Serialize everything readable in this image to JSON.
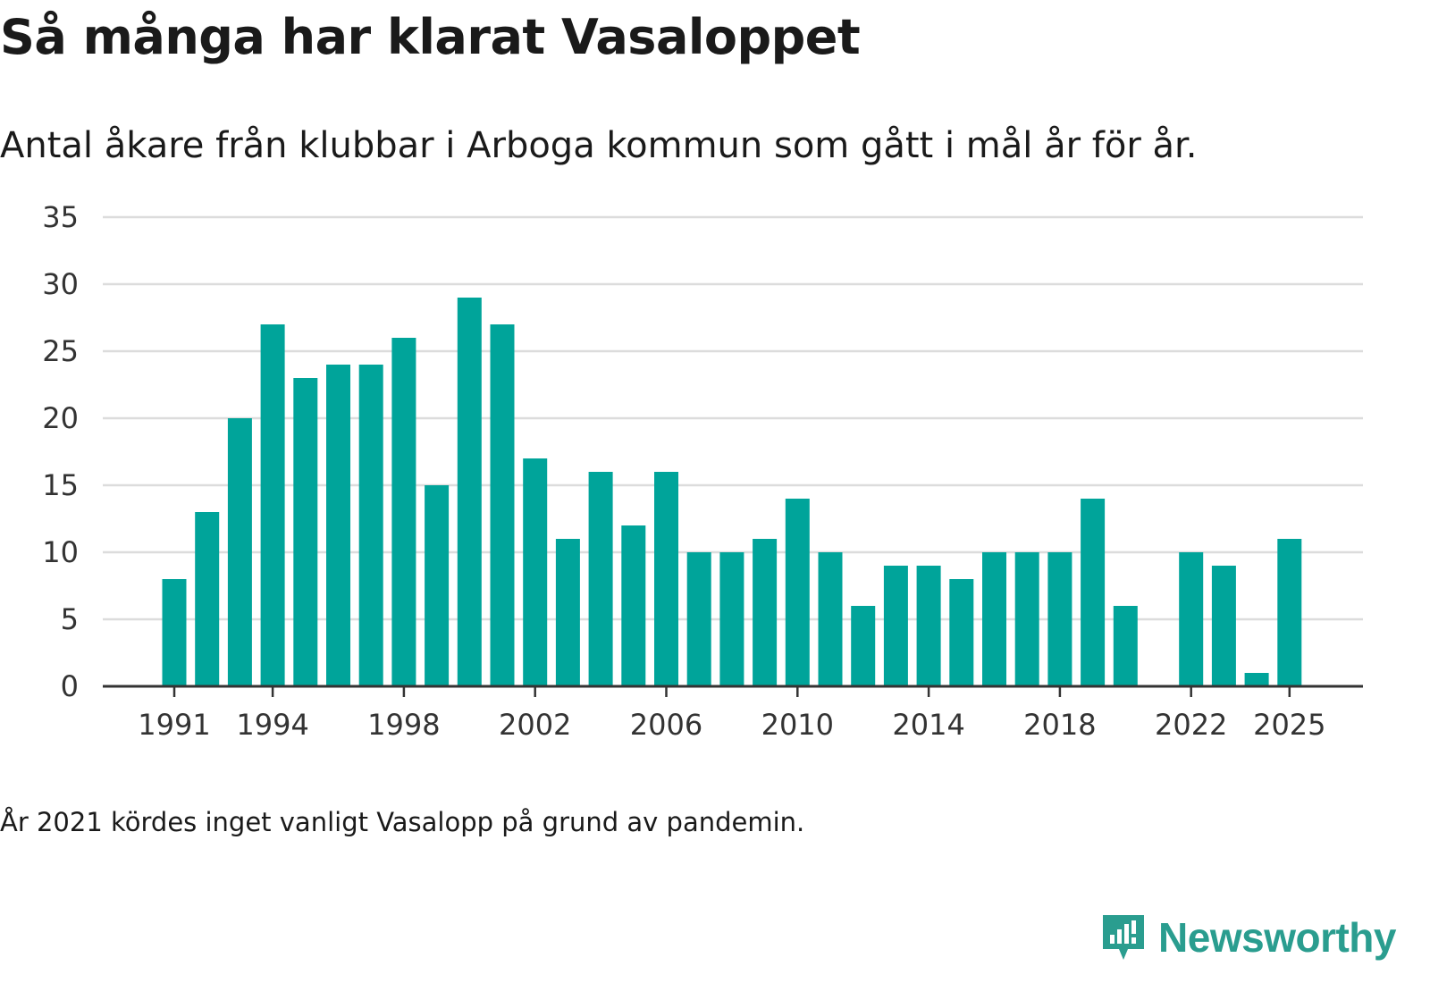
{
  "header": {
    "title": "Så många har klarat Vasaloppet",
    "subtitle": "Antal åkare från klubbar i Arboga kommun som gått i mål år för år."
  },
  "footnote": "År 2021 kördes inget vanligt Vasalopp på grund av pandemin.",
  "brand": {
    "name": "Newsworthy",
    "color": "#2a9d8f"
  },
  "colors": {
    "bar": "#00a49a",
    "grid": "#dcdcdc",
    "axis": "#333333"
  },
  "chart_data": {
    "type": "bar",
    "title": "Så många har klarat Vasaloppet",
    "subtitle": "Antal åkare från klubbar i Arboga kommun som gått i mål år för år.",
    "xlabel": "",
    "ylabel": "",
    "ylim": [
      0,
      35
    ],
    "y_ticks": [
      0,
      5,
      10,
      15,
      20,
      25,
      30,
      35
    ],
    "x_tick_labels": [
      "1991",
      "1994",
      "1998",
      "2002",
      "2006",
      "2010",
      "2014",
      "2018",
      "2022",
      "2025"
    ],
    "grid": true,
    "legend": "none",
    "categories": [
      1991,
      1992,
      1993,
      1994,
      1995,
      1996,
      1997,
      1998,
      1999,
      2000,
      2001,
      2002,
      2003,
      2004,
      2005,
      2006,
      2007,
      2008,
      2009,
      2010,
      2011,
      2012,
      2013,
      2014,
      2015,
      2016,
      2017,
      2018,
      2019,
      2020,
      2021,
      2022,
      2023,
      2024,
      2025
    ],
    "values": [
      8,
      13,
      20,
      27,
      23,
      24,
      24,
      26,
      15,
      29,
      27,
      17,
      11,
      16,
      12,
      16,
      10,
      10,
      11,
      14,
      10,
      6,
      9,
      9,
      8,
      10,
      10,
      10,
      14,
      6,
      0,
      10,
      9,
      1,
      11
    ]
  }
}
